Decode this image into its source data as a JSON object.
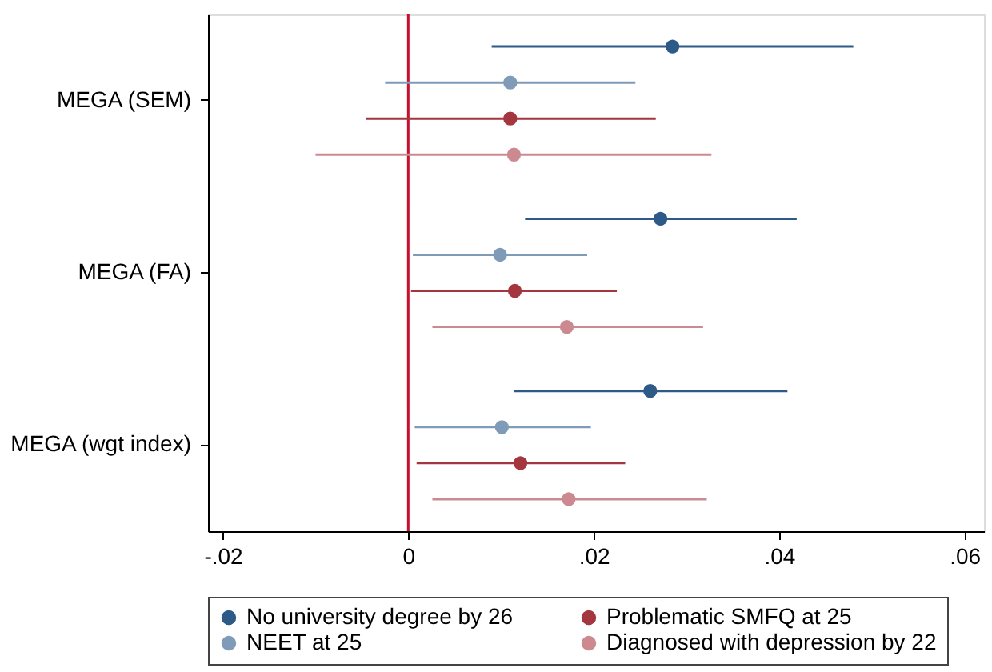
{
  "chart_data": {
    "type": "scatter",
    "orientation": "horizontal",
    "categories": [
      "MEGA (SEM)",
      "MEGA (FA)",
      "MEGA (wgt index)"
    ],
    "series": [
      {
        "name": "No university degree by 26",
        "color": "#2e5a87",
        "values": [
          0.0285,
          0.0272,
          0.0261
        ],
        "errors": [
          [
            0.009,
            0.048
          ],
          [
            0.0126,
            0.0419
          ],
          [
            0.0114,
            0.0409
          ]
        ]
      },
      {
        "name": "NEET at 25",
        "color": "#7f9bb8",
        "values": [
          0.011,
          0.0099,
          0.0101
        ],
        "errors": [
          [
            -0.0025,
            0.0245
          ],
          [
            0.0005,
            0.0193
          ],
          [
            0.0007,
            0.0197
          ]
        ]
      },
      {
        "name": "Problematic SMFQ at 25",
        "color": "#a3363f",
        "values": [
          0.011,
          0.0115,
          0.0121
        ],
        "errors": [
          [
            -0.0046,
            0.0267
          ],
          [
            0.0003,
            0.0225
          ],
          [
            0.0009,
            0.0234
          ]
        ]
      },
      {
        "name": "Diagnosed with depression by 22",
        "color": "#cc8a90",
        "values": [
          0.0114,
          0.0171,
          0.0173
        ],
        "errors": [
          [
            -0.01,
            0.0327
          ],
          [
            0.0026,
            0.0318
          ],
          [
            0.0026,
            0.0322
          ]
        ]
      }
    ],
    "xlim": [
      -0.0216,
      0.0621
    ],
    "xticks": [
      {
        "value": -0.02,
        "label": "-.02"
      },
      0,
      {
        "value": 0.02,
        "label": ".02"
      },
      {
        "value": 0.04,
        "label": ".04"
      },
      {
        "value": 0.06,
        "label": ".06"
      }
    ],
    "ref_lines": [
      {
        "axis": "x",
        "value": 0,
        "color": "#c8102e"
      }
    ],
    "marker": "circle",
    "grid": false,
    "legend": "bottom"
  }
}
